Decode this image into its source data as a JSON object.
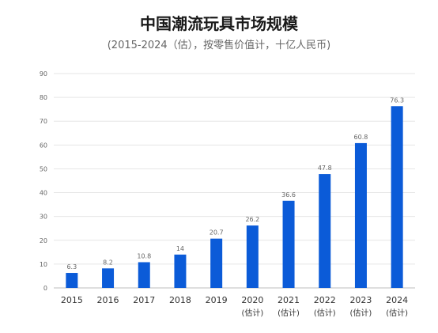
{
  "title": "中国潮流玩具市场规模",
  "subtitle": "(2015-2024（估），按零售价值计，十亿人民币)",
  "colors": {
    "bar": "#0b5bd8",
    "grid": "#e6e6e6",
    "tick": "#666666",
    "label": "#333333"
  },
  "chart_data": {
    "type": "bar",
    "title": "中国潮流玩具市场规模",
    "subtitle": "(2015-2024（估），按零售价值计，十亿人民币)",
    "categories": [
      "2015",
      "2016",
      "2017",
      "2018",
      "2019",
      "2020",
      "2021",
      "2022",
      "2023",
      "2024"
    ],
    "category_notes": [
      "",
      "",
      "",
      "",
      "",
      "(估计)",
      "(估计)",
      "(估计)",
      "(估计)",
      "(估计)"
    ],
    "values": [
      6.3,
      8.2,
      10.8,
      14,
      20.7,
      26.2,
      36.6,
      47.8,
      60.8,
      76.3
    ],
    "value_labels": [
      "6.3",
      "8.2",
      "10.8",
      "14",
      "20.7",
      "26.2",
      "36.6",
      "47.8",
      "60.8",
      "76.3"
    ],
    "ylim": [
      0,
      90
    ],
    "yticks": [
      "0",
      "10",
      "20",
      "30",
      "40",
      "50",
      "60",
      "70",
      "80",
      "90"
    ],
    "xlabel": "",
    "ylabel": "",
    "grid": true
  }
}
